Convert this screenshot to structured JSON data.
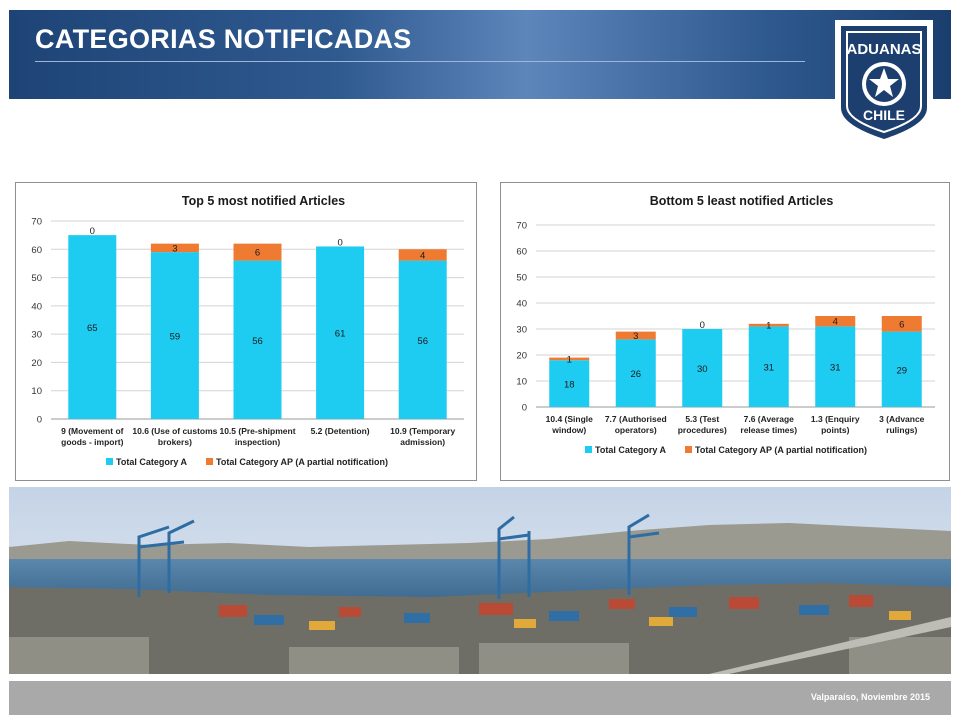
{
  "header": {
    "title": "CATEGORIAS NOTIFICADAS"
  },
  "logo": {
    "top_text": "ADUANAS",
    "bottom_text": "CHILE"
  },
  "footer": {
    "caption": "Valparaíso,  Noviembre 2015"
  },
  "colors": {
    "category_a": "#1ecbf1",
    "category_ap": "#ef7a32",
    "header_blue": "#2f5a90"
  },
  "chart_data": [
    {
      "type": "bar",
      "stacked": true,
      "title": "Top 5 most notified Articles",
      "categories": [
        [
          "9 (Movement of",
          "goods - import)"
        ],
        [
          "10.6 (Use of customs",
          "brokers)"
        ],
        [
          "10.5 (Pre-shipment",
          "inspection)"
        ],
        [
          "5.2 (Detention)"
        ],
        [
          "10.9 (Temporary",
          "admission)"
        ]
      ],
      "series": [
        {
          "name": "Total Category A",
          "values": [
            65,
            59,
            56,
            61,
            56
          ]
        },
        {
          "name": "Total Category AP (A partial notification)",
          "values": [
            0,
            3,
            6,
            0,
            4
          ]
        }
      ],
      "ylim": [
        0,
        70
      ],
      "yticks": [
        0,
        10,
        20,
        30,
        40,
        50,
        60,
        70
      ],
      "grid": true,
      "legend": "bottom"
    },
    {
      "type": "bar",
      "stacked": true,
      "title": "Bottom 5 least notified Articles",
      "categories": [
        [
          "10.4 (Single",
          "window)"
        ],
        [
          "7.7 (Authorised",
          "operators)"
        ],
        [
          "5.3 (Test",
          "procedures)"
        ],
        [
          "7.6 (Average",
          "release times)"
        ],
        [
          "1.3 (Enquiry",
          "points)"
        ],
        [
          "3 (Advance",
          "rulings)"
        ]
      ],
      "series": [
        {
          "name": "Total Category A",
          "values": [
            18,
            26,
            30,
            31,
            31,
            29
          ]
        },
        {
          "name": "Total Category AP (A partial notification)",
          "values": [
            1,
            3,
            0,
            1,
            4,
            6
          ]
        }
      ],
      "ylim": [
        0,
        70
      ],
      "yticks": [
        0,
        10,
        20,
        30,
        40,
        50,
        60,
        70
      ],
      "grid": true,
      "legend": "bottom"
    }
  ]
}
